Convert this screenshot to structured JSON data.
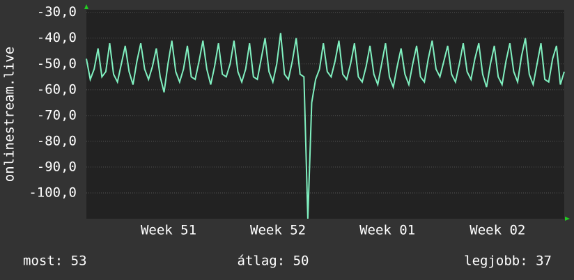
{
  "chart_data": {
    "type": "line",
    "y_label": "onlinestream.live",
    "x": [
      0,
      0.25,
      0.5,
      0.75,
      1,
      1.25,
      1.5,
      1.75,
      2,
      2.25,
      2.5,
      2.75,
      3,
      3.25,
      3.5,
      3.75,
      4,
      4.25,
      4.5,
      4.75,
      5,
      5.25,
      5.5,
      5.75,
      6,
      6.25,
      6.5,
      6.75,
      7,
      7.25,
      7.5,
      7.75,
      8,
      8.25,
      8.5,
      8.75,
      9,
      9.25,
      9.5,
      9.75,
      10,
      10.25,
      10.5,
      10.75,
      11,
      11.25,
      11.5,
      11.75,
      12,
      12.25,
      12.5,
      12.75,
      13,
      13.25,
      13.5,
      13.75,
      14,
      14.25,
      14.5,
      14.75,
      15,
      15.25,
      15.5,
      15.75,
      16,
      16.25,
      16.5,
      16.75,
      17,
      17.25,
      17.5,
      17.75,
      18,
      18.25,
      18.5,
      18.75,
      19,
      19.25,
      19.5,
      19.75,
      20,
      20.25,
      20.5,
      20.75,
      21,
      21.25,
      21.5,
      21.75,
      22,
      22.25,
      22.5,
      22.75,
      23,
      23.25,
      23.5,
      23.75,
      24,
      24.25,
      24.5,
      24.75,
      25,
      25.25,
      25.5,
      25.75,
      26,
      26.25,
      26.5,
      26.75,
      27,
      27.25,
      27.5,
      27.75,
      28,
      28.25,
      28.5,
      28.75,
      29,
      29.25,
      29.5,
      29.75,
      30,
      30.25,
      30.5,
      30.75
    ],
    "series": [
      {
        "name": "onlinestream.live",
        "color": "#80f0c0",
        "values": [
          -48,
          -56,
          -52,
          -44,
          -55,
          -53,
          -42,
          -54,
          -57,
          -50,
          -43,
          -53,
          -58,
          -49,
          -42,
          -52,
          -56,
          -51,
          -44,
          -55,
          -61,
          -50,
          -41,
          -53,
          -57,
          -52,
          -43,
          -55,
          -56,
          -49,
          -41,
          -52,
          -58,
          -51,
          -42,
          -54,
          -55,
          -50,
          -41,
          -53,
          -57,
          -52,
          -42,
          -55,
          -56,
          -48,
          -40,
          -53,
          -57,
          -50,
          -38,
          -54,
          -56,
          -49,
          -40,
          -54,
          -55,
          -110,
          -65,
          -56,
          -52,
          -42,
          -53,
          -55,
          -49,
          -41,
          -54,
          -56,
          -50,
          -42,
          -55,
          -57,
          -51,
          -43,
          -54,
          -58,
          -50,
          -42,
          -55,
          -59,
          -51,
          -44,
          -54,
          -58,
          -50,
          -43,
          -55,
          -57,
          -48,
          -41,
          -52,
          -55,
          -49,
          -43,
          -54,
          -57,
          -50,
          -42,
          -53,
          -56,
          -48,
          -42,
          -54,
          -59,
          -50,
          -43,
          -55,
          -58,
          -49,
          -42,
          -53,
          -57,
          -47,
          -40,
          -54,
          -58,
          -50,
          -42,
          -56,
          -57,
          -48,
          -43,
          -58,
          -53
        ]
      }
    ],
    "xlim": [
      0,
      30.75
    ],
    "xticks": [
      {
        "value": 5.29,
        "label": "Week 51"
      },
      {
        "value": 12.33,
        "label": "Week 52"
      },
      {
        "value": 19.37,
        "label": "Week 01"
      },
      {
        "value": 26.46,
        "label": "Week 02"
      }
    ],
    "ylim": [
      -110,
      -29
    ],
    "yticks": [
      {
        "value": -30,
        "label": "-30,0"
      },
      {
        "value": -40,
        "label": "-40,0"
      },
      {
        "value": -50,
        "label": "-50,0"
      },
      {
        "value": -60,
        "label": "-60,0"
      },
      {
        "value": -70,
        "label": "-70,0"
      },
      {
        "value": -80,
        "label": "-80,0"
      },
      {
        "value": -90,
        "label": "-90,0"
      },
      {
        "value": -100,
        "label": "-100,0"
      }
    ],
    "grid": true,
    "footer": [
      "most: 53",
      "átlag: 50",
      "legjobb: 37"
    ]
  }
}
